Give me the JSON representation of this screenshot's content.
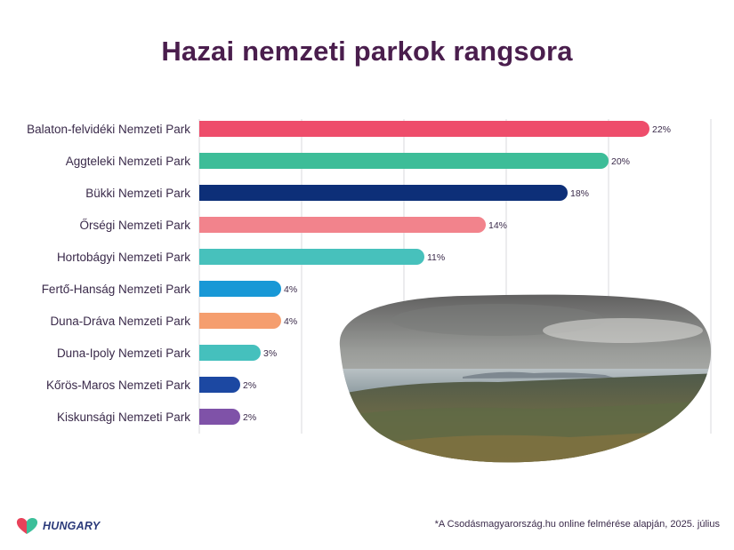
{
  "title": "Hazai nemzeti parkok rangsora",
  "footnote": "*A Csodásmagyarország.hu online felmérése alapján, 2025. július",
  "logo": {
    "text": "HUNGARY",
    "icon": "heart-logo-icon",
    "colors": [
      "#e8425a",
      "#3cbf9a"
    ]
  },
  "photo": {
    "description_icon": "landscape-photo"
  },
  "chart_data": {
    "type": "bar",
    "orientation": "horizontal",
    "title": "Hazai nemzeti parkok rangsora",
    "xlabel": "",
    "ylabel": "",
    "xlim": [
      0,
      25
    ],
    "grid": true,
    "value_suffix": "%",
    "categories": [
      "Balaton-felvidéki Nemzeti Park",
      "Aggteleki Nemzeti Park",
      "Bükki Nemzeti Park",
      "Őrségi Nemzeti Park",
      "Hortobágyi Nemzeti Park",
      "Fertő-Hanság Nemzeti Park",
      "Duna-Dráva Nemzeti Park",
      "Duna-Ipoly Nemzeti Park",
      "Kőrös-Maros Nemzeti Park",
      "Kiskunsági Nemzeti Park"
    ],
    "values": [
      22,
      20,
      18,
      14,
      11,
      4,
      4,
      3,
      2,
      2
    ],
    "labels": [
      "22%",
      "20%",
      "18%",
      "14%",
      "11%",
      "4%",
      "4%",
      "3%",
      "2%",
      "2%"
    ],
    "colors": [
      "#ee4d6b",
      "#3dbd98",
      "#0d2f78",
      "#f2838c",
      "#47c1bc",
      "#1898d6",
      "#f59e6e",
      "#45c0bd",
      "#1c48a2",
      "#7f52a8"
    ]
  }
}
